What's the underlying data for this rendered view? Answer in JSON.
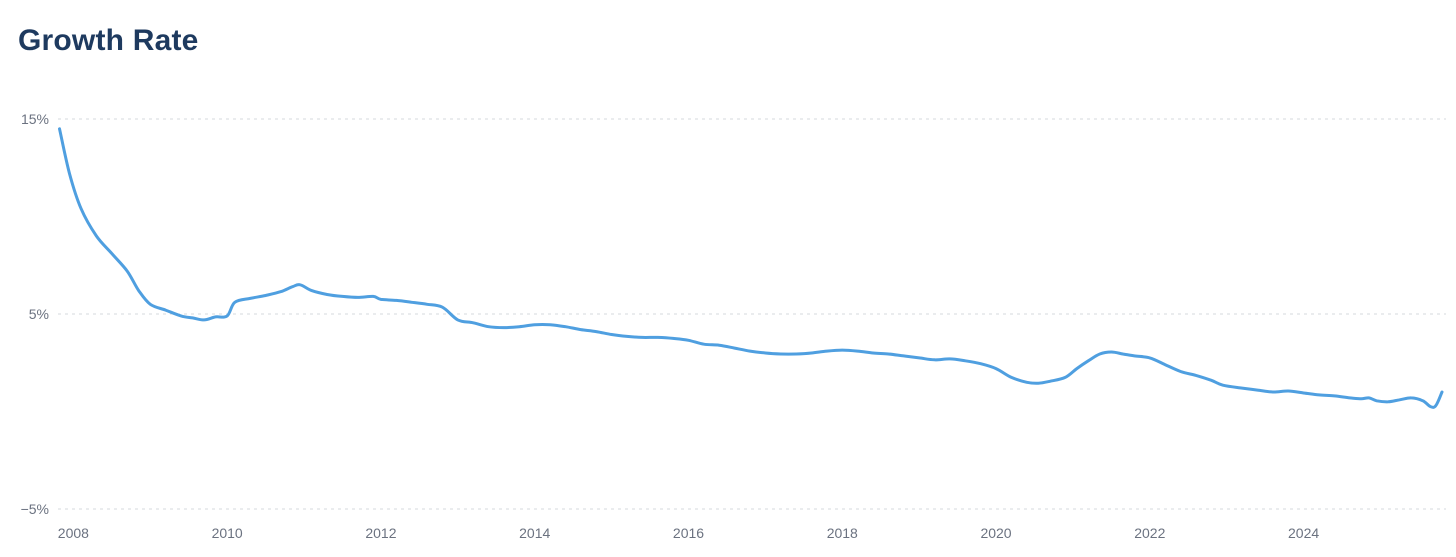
{
  "chart_data": {
    "type": "line",
    "title": "Growth Rate",
    "xlabel": "",
    "ylabel": "",
    "xlim": [
      2007.8,
      2025.8
    ],
    "ylim": [
      -5,
      15
    ],
    "y_ticks": [
      {
        "value": 15,
        "label": "15%"
      },
      {
        "value": 5,
        "label": "5%"
      },
      {
        "value": -5,
        "label": "−5%"
      }
    ],
    "x_ticks": [
      {
        "value": 2008,
        "label": "2008"
      },
      {
        "value": 2010,
        "label": "2010"
      },
      {
        "value": 2012,
        "label": "2012"
      },
      {
        "value": 2014,
        "label": "2014"
      },
      {
        "value": 2016,
        "label": "2016"
      },
      {
        "value": 2018,
        "label": "2018"
      },
      {
        "value": 2020,
        "label": "2020"
      },
      {
        "value": 2022,
        "label": "2022"
      },
      {
        "value": 2024,
        "label": "2024"
      }
    ],
    "grid": true,
    "legend": "none",
    "series": [
      {
        "color": "#4f9fe0",
        "points": [
          [
            2007.82,
            14.5
          ],
          [
            2007.95,
            12.2
          ],
          [
            2008.1,
            10.4
          ],
          [
            2008.3,
            9.0
          ],
          [
            2008.5,
            8.1
          ],
          [
            2008.7,
            7.2
          ],
          [
            2008.85,
            6.2
          ],
          [
            2009.0,
            5.5
          ],
          [
            2009.2,
            5.2
          ],
          [
            2009.4,
            4.9
          ],
          [
            2009.55,
            4.8
          ],
          [
            2009.7,
            4.7
          ],
          [
            2009.85,
            4.85
          ],
          [
            2010.0,
            4.9
          ],
          [
            2010.1,
            5.6
          ],
          [
            2010.3,
            5.8
          ],
          [
            2010.5,
            5.95
          ],
          [
            2010.7,
            6.15
          ],
          [
            2010.85,
            6.4
          ],
          [
            2010.95,
            6.5
          ],
          [
            2011.1,
            6.2
          ],
          [
            2011.3,
            6.0
          ],
          [
            2011.5,
            5.9
          ],
          [
            2011.7,
            5.85
          ],
          [
            2011.9,
            5.9
          ],
          [
            2012.0,
            5.75
          ],
          [
            2012.2,
            5.7
          ],
          [
            2012.4,
            5.6
          ],
          [
            2012.6,
            5.5
          ],
          [
            2012.8,
            5.35
          ],
          [
            2013.0,
            4.7
          ],
          [
            2013.2,
            4.55
          ],
          [
            2013.4,
            4.35
          ],
          [
            2013.6,
            4.3
          ],
          [
            2013.8,
            4.35
          ],
          [
            2014.0,
            4.45
          ],
          [
            2014.2,
            4.45
          ],
          [
            2014.4,
            4.35
          ],
          [
            2014.6,
            4.2
          ],
          [
            2014.8,
            4.1
          ],
          [
            2015.0,
            3.95
          ],
          [
            2015.2,
            3.85
          ],
          [
            2015.4,
            3.8
          ],
          [
            2015.6,
            3.8
          ],
          [
            2015.8,
            3.75
          ],
          [
            2016.0,
            3.65
          ],
          [
            2016.2,
            3.45
          ],
          [
            2016.4,
            3.4
          ],
          [
            2016.6,
            3.25
          ],
          [
            2016.8,
            3.1
          ],
          [
            2017.0,
            3.0
          ],
          [
            2017.2,
            2.95
          ],
          [
            2017.4,
            2.95
          ],
          [
            2017.6,
            3.0
          ],
          [
            2017.8,
            3.1
          ],
          [
            2018.0,
            3.15
          ],
          [
            2018.2,
            3.1
          ],
          [
            2018.4,
            3.0
          ],
          [
            2018.6,
            2.95
          ],
          [
            2018.8,
            2.85
          ],
          [
            2019.0,
            2.75
          ],
          [
            2019.2,
            2.65
          ],
          [
            2019.4,
            2.7
          ],
          [
            2019.6,
            2.6
          ],
          [
            2019.8,
            2.45
          ],
          [
            2020.0,
            2.2
          ],
          [
            2020.2,
            1.75
          ],
          [
            2020.4,
            1.5
          ],
          [
            2020.55,
            1.45
          ],
          [
            2020.7,
            1.55
          ],
          [
            2020.9,
            1.75
          ],
          [
            2021.05,
            2.2
          ],
          [
            2021.2,
            2.6
          ],
          [
            2021.35,
            2.95
          ],
          [
            2021.5,
            3.05
          ],
          [
            2021.65,
            2.95
          ],
          [
            2021.8,
            2.85
          ],
          [
            2022.0,
            2.75
          ],
          [
            2022.2,
            2.4
          ],
          [
            2022.4,
            2.05
          ],
          [
            2022.6,
            1.85
          ],
          [
            2022.8,
            1.6
          ],
          [
            2022.95,
            1.35
          ],
          [
            2023.2,
            1.2
          ],
          [
            2023.4,
            1.1
          ],
          [
            2023.6,
            1.0
          ],
          [
            2023.8,
            1.05
          ],
          [
            2024.0,
            0.95
          ],
          [
            2024.2,
            0.85
          ],
          [
            2024.4,
            0.8
          ],
          [
            2024.6,
            0.7
          ],
          [
            2024.75,
            0.65
          ],
          [
            2024.85,
            0.7
          ],
          [
            2024.95,
            0.55
          ],
          [
            2025.1,
            0.5
          ],
          [
            2025.25,
            0.6
          ],
          [
            2025.4,
            0.7
          ],
          [
            2025.55,
            0.55
          ],
          [
            2025.65,
            0.25
          ],
          [
            2025.72,
            0.3
          ],
          [
            2025.8,
            1.0
          ]
        ]
      }
    ]
  }
}
